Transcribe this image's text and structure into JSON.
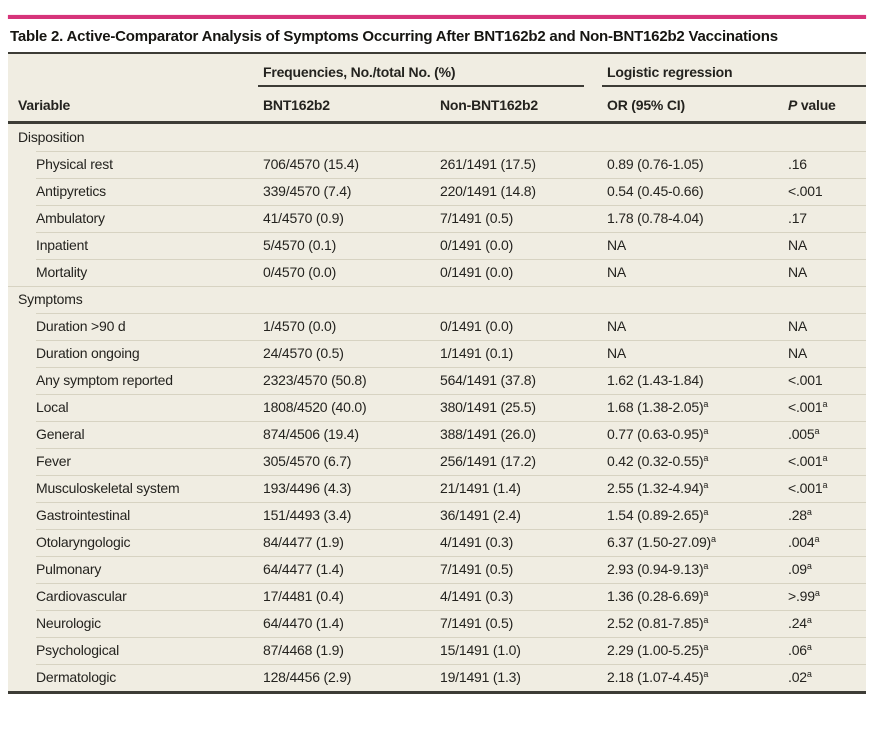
{
  "table": {
    "title": "Table 2. Active-Comparator Analysis of Symptoms Occurring After BNT162b2 and Non-BNT162b2 Vaccinations",
    "groups": [
      {
        "label": "Frequencies, No./total No. (%)"
      },
      {
        "label": "Logistic regression"
      }
    ],
    "columns": [
      "Variable",
      "BNT162b2",
      "Non-BNT162b2",
      "OR (95% CI)"
    ],
    "p_header": {
      "italic": "P",
      "rest": " value"
    },
    "footnote_marker": "a",
    "sections": [
      {
        "label": "Disposition",
        "rows": [
          {
            "variable": "Physical rest",
            "bnt162b2": "706/4570 (15.4)",
            "non_bnt162b2": "261/1491 (17.5)",
            "or": "0.89 (0.76-1.05)",
            "or_sup": "",
            "p": ".16",
            "p_sup": ""
          },
          {
            "variable": "Antipyretics",
            "bnt162b2": "339/4570 (7.4)",
            "non_bnt162b2": "220/1491 (14.8)",
            "or": "0.54 (0.45-0.66)",
            "or_sup": "",
            "p": "<.001",
            "p_sup": ""
          },
          {
            "variable": "Ambulatory",
            "bnt162b2": "41/4570 (0.9)",
            "non_bnt162b2": "7/1491 (0.5)",
            "or": "1.78 (0.78-4.04)",
            "or_sup": "",
            "p": ".17",
            "p_sup": ""
          },
          {
            "variable": "Inpatient",
            "bnt162b2": "5/4570 (0.1)",
            "non_bnt162b2": "0/1491 (0.0)",
            "or": "NA",
            "or_sup": "",
            "p": "NA",
            "p_sup": ""
          },
          {
            "variable": "Mortality",
            "bnt162b2": "0/4570 (0.0)",
            "non_bnt162b2": "0/1491 (0.0)",
            "or": "NA",
            "or_sup": "",
            "p": "NA",
            "p_sup": ""
          }
        ]
      },
      {
        "label": "Symptoms",
        "rows": [
          {
            "variable": "Duration >90 d",
            "bnt162b2": "1/4570 (0.0)",
            "non_bnt162b2": "0/1491 (0.0)",
            "or": "NA",
            "or_sup": "",
            "p": "NA",
            "p_sup": ""
          },
          {
            "variable": "Duration ongoing",
            "bnt162b2": "24/4570 (0.5)",
            "non_bnt162b2": "1/1491 (0.1)",
            "or": "NA",
            "or_sup": "",
            "p": "NA",
            "p_sup": ""
          },
          {
            "variable": "Any symptom reported",
            "bnt162b2": "2323/4570 (50.8)",
            "non_bnt162b2": "564/1491 (37.8)",
            "or": "1.62 (1.43-1.84)",
            "or_sup": "",
            "p": "<.001",
            "p_sup": ""
          },
          {
            "variable": "Local",
            "bnt162b2": "1808/4520 (40.0)",
            "non_bnt162b2": "380/1491 (25.5)",
            "or": "1.68 (1.38-2.05)",
            "or_sup": "a",
            "p": "<.001",
            "p_sup": "a"
          },
          {
            "variable": "General",
            "bnt162b2": "874/4506 (19.4)",
            "non_bnt162b2": "388/1491 (26.0)",
            "or": "0.77 (0.63-0.95)",
            "or_sup": "a",
            "p": ".005",
            "p_sup": "a"
          },
          {
            "variable": "Fever",
            "bnt162b2": "305/4570 (6.7)",
            "non_bnt162b2": "256/1491 (17.2)",
            "or": "0.42 (0.32-0.55)",
            "or_sup": "a",
            "p": "<.001",
            "p_sup": "a"
          },
          {
            "variable": "Musculoskeletal system",
            "bnt162b2": "193/4496 (4.3)",
            "non_bnt162b2": "21/1491 (1.4)",
            "or": "2.55 (1.32-4.94)",
            "or_sup": "a",
            "p": "<.001",
            "p_sup": "a"
          },
          {
            "variable": "Gastrointestinal",
            "bnt162b2": "151/4493 (3.4)",
            "non_bnt162b2": "36/1491 (2.4)",
            "or": "1.54 (0.89-2.65)",
            "or_sup": "a",
            "p": ".28",
            "p_sup": "a"
          },
          {
            "variable": "Otolaryngologic",
            "bnt162b2": "84/4477 (1.9)",
            "non_bnt162b2": "4/1491 (0.3)",
            "or": "6.37 (1.50-27.09)",
            "or_sup": "a",
            "p": ".004",
            "p_sup": "a"
          },
          {
            "variable": "Pulmonary",
            "bnt162b2": "64/4477 (1.4)",
            "non_bnt162b2": "7/1491 (0.5)",
            "or": "2.93 (0.94-9.13)",
            "or_sup": "a",
            "p": ".09",
            "p_sup": "a"
          },
          {
            "variable": "Cardiovascular",
            "bnt162b2": "17/4481 (0.4)",
            "non_bnt162b2": "4/1491 (0.3)",
            "or": "1.36 (0.28-6.69)",
            "or_sup": "a",
            "p": ">.99",
            "p_sup": "a"
          },
          {
            "variable": "Neurologic",
            "bnt162b2": "64/4470 (1.4)",
            "non_bnt162b2": "7/1491 (0.5)",
            "or": "2.52 (0.81-7.85)",
            "or_sup": "a",
            "p": ".24",
            "p_sup": "a"
          },
          {
            "variable": "Psychological",
            "bnt162b2": "87/4468 (1.9)",
            "non_bnt162b2": "15/1491 (1.0)",
            "or": "2.29 (1.00-5.25)",
            "or_sup": "a",
            "p": ".06",
            "p_sup": "a"
          },
          {
            "variable": "Dermatologic",
            "bnt162b2": "128/4456 (2.9)",
            "non_bnt162b2": "19/1491 (1.3)",
            "or": "2.18 (1.07-4.45)",
            "or_sup": "a",
            "p": ".02",
            "p_sup": "a"
          }
        ]
      }
    ]
  },
  "colors": {
    "accent_pink": "#d6347a",
    "rule_dark": "#3d3c36",
    "table_background": "#f0ede2",
    "row_separator": "#d7d3c2",
    "text": "#24231f"
  }
}
